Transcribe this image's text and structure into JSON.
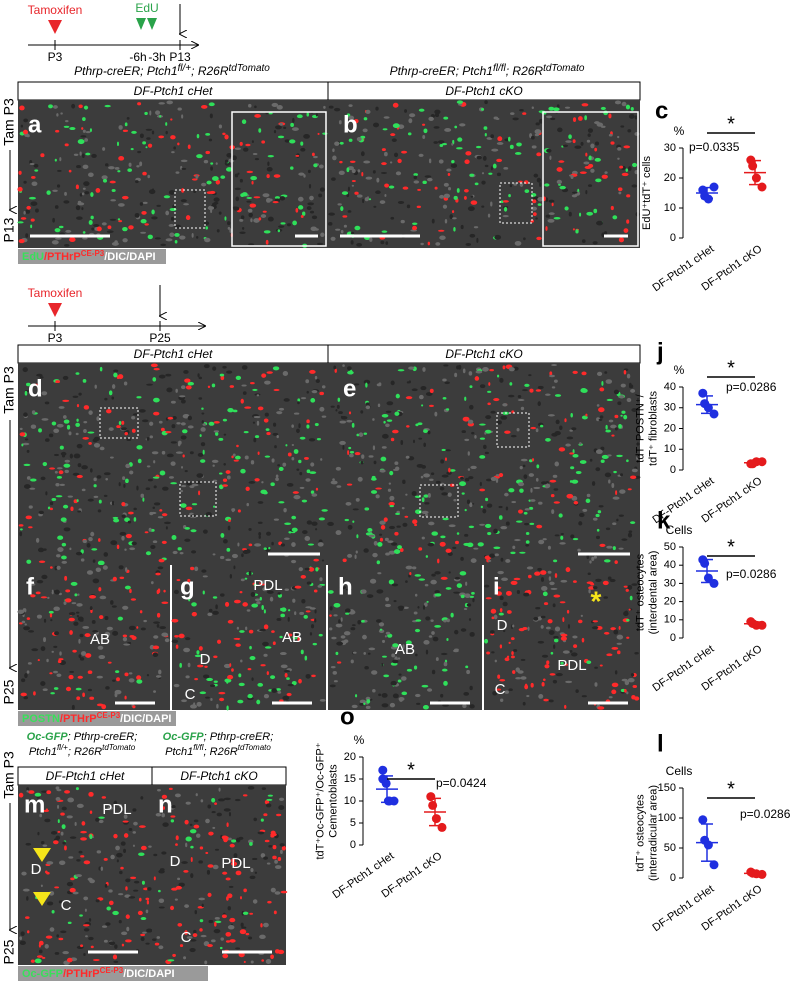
{
  "timeline_1": {
    "tamoxifen": "Tamoxifen",
    "edu": "EdU",
    "labels": [
      "P3",
      "-6h",
      "-3h",
      "P13"
    ]
  },
  "timeline_2": {
    "tamoxifen": "Tamoxifen",
    "labels": [
      "P3",
      "P25"
    ]
  },
  "side_labels": [
    "Tam P3",
    "P13",
    "Tam P3",
    "P25",
    "Tam P3",
    "P25"
  ],
  "genotypes": {
    "het": [
      "Pthrp-creER; Ptch1",
      "fl/+",
      "; R26R",
      "tdTomato"
    ],
    "ko": [
      "Pthrp-creER; Ptch1",
      "fl/fl",
      "; R26R",
      "tdTomato"
    ],
    "oc_het": [
      "Oc-GFP",
      "; Pthrp-creER;",
      "Ptch1",
      "fl/+",
      "; R26R",
      "tdTomato"
    ],
    "oc_ko": [
      "Oc-GFP",
      "; Pthrp-creER;",
      "Ptch1",
      "fl/fl",
      "; R26R",
      "tdTomato"
    ]
  },
  "panel_titles": [
    "DF-Ptch1 cHet",
    "DF-Ptch1 cKO",
    "DF-Ptch1 cHet",
    "DF-Ptch1 cKO",
    "DF-Ptch1 cHet",
    "DF-Ptch1 cKO"
  ],
  "panel_letters": [
    "a",
    "b",
    "d",
    "e",
    "f",
    "g",
    "h",
    "i",
    "m",
    "n"
  ],
  "tissue_labels": {
    "f": [
      "AB"
    ],
    "g": [
      "PDL",
      "D",
      "AB",
      "C"
    ],
    "h": [
      "AB"
    ],
    "i": [
      "D",
      "PDL",
      "C"
    ],
    "m": [
      "PDL",
      "D",
      "C"
    ],
    "n": [
      "D",
      "PDL",
      "C"
    ]
  },
  "asterisk_i": "*",
  "stain_legends": [
    [
      "EdU",
      "/PTHrP",
      "CE-P3",
      "/DIC/DAPI"
    ],
    [
      "POSTN",
      "/PTHrP",
      "CE-P3",
      "/DIC/DAPI"
    ],
    [
      "Oc-GFP",
      "/PTHrP",
      "CE-P3",
      "/DIC/DAPI"
    ]
  ],
  "chart_data": [
    {
      "type": "dot",
      "letter": "c",
      "unit": "%",
      "y_label": [
        "EdU⁺tdT⁺ cells"
      ],
      "ylim": [
        0,
        30
      ],
      "yticks": [
        0,
        10,
        20,
        30
      ],
      "significance": "*",
      "p_value": "p=0.0335",
      "categories": [
        "DF-Ptch1 cHet",
        "DF-Ptch1 cKO"
      ],
      "groups": [
        {
          "color": "#1f2fe0",
          "values": [
            16,
            14,
            13,
            17
          ],
          "mean": 15,
          "sd": 1.8
        },
        {
          "color": "#e41a1c",
          "values": [
            26,
            24,
            20,
            17
          ],
          "mean": 21.8,
          "sd": 4
        }
      ]
    },
    {
      "type": "dot",
      "letter": "j",
      "unit": "%",
      "y_label": [
        "tdT⁺POSTN⁺/",
        "tdT⁺ fibroblasts"
      ],
      "ylim": [
        0,
        40
      ],
      "yticks": [
        0,
        10,
        20,
        30,
        40
      ],
      "significance": "*",
      "p_value": "p=0.0286",
      "categories": [
        "DF-Ptch1 cHet",
        "DF-Ptch1 cKO"
      ],
      "groups": [
        {
          "color": "#1f2fe0",
          "values": [
            37,
            32,
            30,
            27
          ],
          "mean": 31.5,
          "sd": 4.2
        },
        {
          "color": "#e41a1c",
          "values": [
            3,
            3,
            4,
            4
          ],
          "mean": 3.5,
          "sd": 0.6
        }
      ]
    },
    {
      "type": "dot",
      "letter": "k",
      "unit": "Cells",
      "y_label": [
        "tdT⁺ osteocytes",
        "(interdental area)"
      ],
      "ylim": [
        0,
        50
      ],
      "yticks": [
        0,
        10,
        20,
        30,
        40,
        50
      ],
      "significance": "*",
      "p_value": "p=0.0286",
      "categories": [
        "DF-Ptch1 cHet",
        "DF-Ptch1 cKO"
      ],
      "groups": [
        {
          "color": "#1f2fe0",
          "values": [
            43,
            41,
            33,
            30
          ],
          "mean": 36.8,
          "sd": 6.3
        },
        {
          "color": "#e41a1c",
          "values": [
            9,
            8,
            7,
            7
          ],
          "mean": 7.8,
          "sd": 1
        }
      ]
    },
    {
      "type": "dot",
      "letter": "l",
      "unit": "Cells",
      "y_label": [
        "tdT⁺ osteocytes",
        "(interradicular area)"
      ],
      "ylim": [
        0,
        150
      ],
      "yticks": [
        0,
        50,
        100,
        150
      ],
      "significance": "*",
      "p_value": "p=0.0286",
      "categories": [
        "DF-Ptch1 cHet",
        "DF-Ptch1 cKO"
      ],
      "groups": [
        {
          "color": "#1f2fe0",
          "values": [
            97,
            63,
            55,
            22
          ],
          "mean": 59,
          "sd": 31
        },
        {
          "color": "#e41a1c",
          "values": [
            10,
            8,
            7,
            6
          ],
          "mean": 7.8,
          "sd": 1.7
        }
      ]
    },
    {
      "type": "dot",
      "letter": "o",
      "unit": "%",
      "y_label": [
        "tdT⁺Oc-GFP⁺/Oc-GFP⁺",
        "Cementoblasts"
      ],
      "ylim": [
        0,
        20
      ],
      "yticks": [
        0,
        5,
        10,
        15,
        20
      ],
      "significance": "*",
      "p_value": "p=0.0424",
      "categories": [
        "DF-Ptch1 cHet",
        "DF-Ptch1 cKO"
      ],
      "groups": [
        {
          "color": "#1f2fe0",
          "values": [
            17,
            15,
            14,
            10,
            10,
            10
          ],
          "mean": 12.7,
          "sd": 3
        },
        {
          "color": "#e41a1c",
          "values": [
            11,
            9,
            6,
            4
          ],
          "mean": 7.5,
          "sd": 3.1
        }
      ]
    }
  ]
}
